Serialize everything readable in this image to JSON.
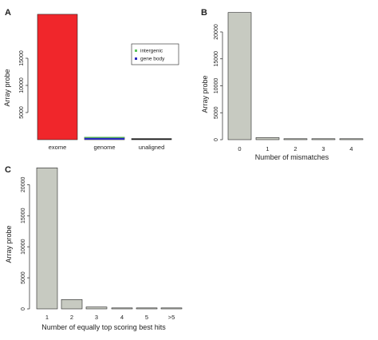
{
  "colors": {
    "exome_bar": "#f0262b",
    "grey_bar": "#c7cac1",
    "genome_bar": "#2f3a14",
    "unaligned_bar": "#1a1a1a",
    "intergenic": "#5cc45c",
    "gene_body": "#2b2bbf",
    "axis": "#222222"
  },
  "chart_data": [
    {
      "panel": "A",
      "type": "bar",
      "stacked": true,
      "categories": [
        "exome",
        "genome",
        "unaligned"
      ],
      "values": [
        23100,
        450,
        200
      ],
      "genome_split": {
        "intergenic": 120,
        "gene_body": 330
      },
      "ylabel": "Array probe",
      "xlabel": "",
      "yticks": [
        5000,
        10000,
        15000
      ],
      "ylim": [
        0,
        25000
      ],
      "legend": {
        "position": "top-right",
        "entries": [
          {
            "label": "intergenic",
            "color": "#5cc45c"
          },
          {
            "label": "gene body",
            "color": "#2b2bbf"
          }
        ]
      }
    },
    {
      "panel": "B",
      "type": "bar",
      "categories": [
        "0",
        "1",
        "2",
        "3",
        "4"
      ],
      "values": [
        23600,
        380,
        90,
        30,
        20
      ],
      "ylabel": "Array probe",
      "xlabel": "Number of mismatches",
      "yticks": [
        0,
        5000,
        10000,
        15000,
        20000
      ],
      "ylim": [
        0,
        24000
      ]
    },
    {
      "panel": "C",
      "type": "bar",
      "categories": [
        "1",
        "2",
        "3",
        "4",
        "5",
        ">5"
      ],
      "values": [
        22700,
        1500,
        300,
        80,
        40,
        40
      ],
      "ylabel": "Array probe",
      "xlabel": "Number of equally top scoring best hits",
      "yticks": [
        0,
        5000,
        10000,
        15000,
        20000
      ],
      "ylim": [
        0,
        23000
      ]
    }
  ]
}
